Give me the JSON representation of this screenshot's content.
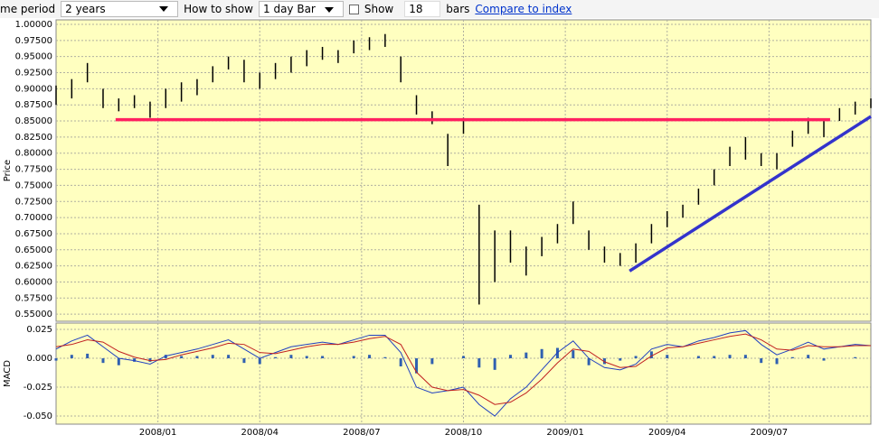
{
  "toolbar": {
    "period_label": "me period",
    "period_value": "2 years",
    "show_label": "How to show",
    "show_value": "1 day Bar",
    "bars_check_label": "Show",
    "bars_count": "18",
    "bars_unit": "bars",
    "compare_link": "Compare to index"
  },
  "chart_data": [
    {
      "type": "range-bar",
      "ylabel": "Price",
      "color": "#000000",
      "grid": true,
      "x": [
        0,
        2,
        4,
        6,
        8,
        10,
        12,
        14,
        16,
        18,
        20,
        22,
        24,
        26,
        28,
        30,
        32,
        34,
        36,
        38,
        40,
        42,
        44,
        46,
        48,
        50,
        52,
        54,
        56,
        58,
        60,
        62,
        64,
        66,
        68,
        70,
        72,
        74,
        76,
        78,
        80,
        82,
        84,
        86,
        88,
        90,
        92,
        94,
        96,
        98,
        100,
        102,
        104
      ],
      "high": [
        0.905,
        0.915,
        0.94,
        0.9,
        0.885,
        0.89,
        0.88,
        0.9,
        0.91,
        0.915,
        0.935,
        0.95,
        0.945,
        0.925,
        0.94,
        0.95,
        0.96,
        0.965,
        0.96,
        0.975,
        0.98,
        0.985,
        0.95,
        0.89,
        0.865,
        0.83,
        0.855,
        0.72,
        0.68,
        0.68,
        0.655,
        0.67,
        0.69,
        0.725,
        0.68,
        0.655,
        0.645,
        0.66,
        0.69,
        0.71,
        0.72,
        0.745,
        0.775,
        0.81,
        0.825,
        0.8,
        0.8,
        0.835,
        0.855,
        0.85,
        0.87,
        0.88,
        0.885
      ],
      "low": [
        0.875,
        0.885,
        0.91,
        0.87,
        0.865,
        0.87,
        0.855,
        0.87,
        0.88,
        0.89,
        0.91,
        0.93,
        0.91,
        0.9,
        0.915,
        0.925,
        0.935,
        0.945,
        0.94,
        0.955,
        0.96,
        0.965,
        0.91,
        0.86,
        0.845,
        0.78,
        0.83,
        0.565,
        0.6,
        0.63,
        0.61,
        0.64,
        0.66,
        0.69,
        0.65,
        0.63,
        0.625,
        0.63,
        0.66,
        0.685,
        0.7,
        0.72,
        0.75,
        0.78,
        0.79,
        0.78,
        0.775,
        0.81,
        0.83,
        0.825,
        0.85,
        0.86,
        0.87
      ],
      "trend_lines": [
        {
          "x": [
            7.6,
            98.8
          ],
          "y": [
            0.852,
            0.852
          ],
          "color": "#ff2060"
        },
        {
          "x": [
            73.2,
            104
          ],
          "y": [
            0.617,
            0.857
          ],
          "color": "#3333cc"
        }
      ],
      "xlim": [
        0,
        104
      ],
      "ylim": [
        0.539,
        1.007
      ],
      "yticks": [
        {
          "value": 0.55,
          "label": "0.55000"
        },
        {
          "value": 0.575,
          "label": "0.57500"
        },
        {
          "value": 0.6,
          "label": "0.60000"
        },
        {
          "value": 0.625,
          "label": "0.62500"
        },
        {
          "value": 0.65,
          "label": "0.65000"
        },
        {
          "value": 0.675,
          "label": "0.67500"
        },
        {
          "value": 0.7,
          "label": "0.70000"
        },
        {
          "value": 0.725,
          "label": "0.72500"
        },
        {
          "value": 0.75,
          "label": "0.75000"
        },
        {
          "value": 0.775,
          "label": "0.77500"
        },
        {
          "value": 0.8,
          "label": "0.80000"
        },
        {
          "value": 0.825,
          "label": "0.82500"
        },
        {
          "value": 0.85,
          "label": "0.85000"
        },
        {
          "value": 0.875,
          "label": "0.87500"
        },
        {
          "value": 0.9,
          "label": "0.90000"
        },
        {
          "value": 0.925,
          "label": "0.92500"
        },
        {
          "value": 0.95,
          "label": "0.95000"
        },
        {
          "value": 0.975,
          "label": "0.97500"
        },
        {
          "value": 1.0,
          "label": "1.00000"
        }
      ],
      "xticks": [
        13,
        26,
        39,
        52,
        65,
        78,
        91
      ]
    },
    {
      "type": "macd",
      "ylabel": "MACD",
      "grid": true,
      "x": [
        0,
        2,
        4,
        6,
        8,
        10,
        12,
        14,
        16,
        18,
        20,
        22,
        24,
        26,
        28,
        30,
        32,
        34,
        36,
        38,
        40,
        42,
        44,
        46,
        48,
        50,
        52,
        54,
        56,
        58,
        60,
        62,
        64,
        66,
        68,
        70,
        72,
        74,
        76,
        78,
        80,
        82,
        84,
        86,
        88,
        90,
        92,
        94,
        96,
        98,
        100,
        102,
        104
      ],
      "series": [
        {
          "color": "#2040c0",
          "values": [
            0.008,
            0.015,
            0.02,
            0.01,
            0.0,
            -0.002,
            -0.005,
            0.002,
            0.005,
            0.008,
            0.012,
            0.016,
            0.008,
            0.0,
            0.005,
            0.01,
            0.012,
            0.014,
            0.012,
            0.016,
            0.02,
            0.02,
            0.005,
            -0.025,
            -0.03,
            -0.028,
            -0.025,
            -0.04,
            -0.05,
            -0.035,
            -0.025,
            -0.01,
            0.005,
            0.015,
            0.0,
            -0.008,
            -0.01,
            -0.005,
            0.008,
            0.012,
            0.01,
            0.015,
            0.018,
            0.022,
            0.024,
            0.012,
            0.003,
            0.008,
            0.014,
            0.008,
            0.01,
            0.012,
            0.011
          ]
        },
        {
          "color": "#c02020",
          "values": [
            0.01,
            0.012,
            0.016,
            0.014,
            0.006,
            0.001,
            -0.002,
            -0.001,
            0.003,
            0.006,
            0.009,
            0.013,
            0.012,
            0.005,
            0.004,
            0.007,
            0.01,
            0.012,
            0.012,
            0.014,
            0.017,
            0.019,
            0.012,
            -0.012,
            -0.025,
            -0.028,
            -0.027,
            -0.032,
            -0.04,
            -0.038,
            -0.03,
            -0.018,
            -0.004,
            0.008,
            0.006,
            -0.003,
            -0.008,
            -0.007,
            0.002,
            0.009,
            0.01,
            0.013,
            0.016,
            0.019,
            0.021,
            0.016,
            0.008,
            0.007,
            0.011,
            0.01,
            0.01,
            0.011,
            0.011
          ]
        }
      ],
      "histogram": {
        "color": "#3060b0",
        "values": [
          -0.002,
          0.003,
          0.004,
          -0.004,
          -0.006,
          -0.003,
          -0.003,
          0.003,
          0.002,
          0.002,
          0.003,
          0.003,
          -0.004,
          -0.005,
          0.001,
          0.003,
          0.002,
          0.002,
          0.0,
          0.002,
          0.003,
          0.001,
          -0.007,
          -0.013,
          -0.005,
          0.0,
          0.002,
          -0.008,
          -0.01,
          0.003,
          0.005,
          0.008,
          0.009,
          0.007,
          -0.006,
          -0.005,
          -0.002,
          0.002,
          0.006,
          0.003,
          0.0,
          0.002,
          0.002,
          0.003,
          0.003,
          -0.004,
          -0.005,
          0.001,
          0.003,
          -0.002,
          0.0,
          0.001,
          0.0
        ]
      },
      "xlim": [
        0,
        104
      ],
      "ylim": [
        -0.057,
        0.0305
      ],
      "yticks": [
        {
          "value": -0.05,
          "label": "-0.050"
        },
        -0.025,
        {
          "value": 0,
          "label": "0.000"
        },
        0.025
      ],
      "xticks": [
        {
          "value": 13,
          "label": "2008/01"
        },
        {
          "value": 26,
          "label": "2008/04"
        },
        {
          "value": 39,
          "label": "2008/07"
        },
        {
          "value": 52,
          "label": "2008/10"
        },
        {
          "value": 65,
          "label": "2009/01"
        },
        {
          "value": 78,
          "label": "2009/04"
        },
        {
          "value": 91,
          "label": "2009/07"
        }
      ]
    }
  ]
}
